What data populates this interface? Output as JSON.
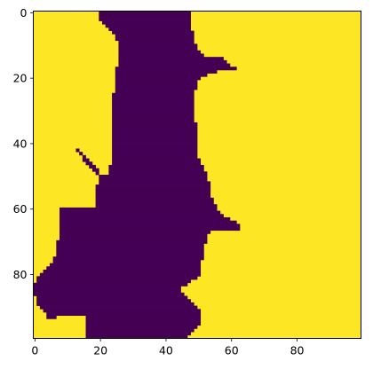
{
  "chart_data": {
    "type": "heatmap",
    "title": "",
    "xlabel": "",
    "ylabel": "",
    "grid": false,
    "x_ticks": [
      0,
      20,
      40,
      60,
      80
    ],
    "y_ticks": [
      0,
      20,
      40,
      60,
      80
    ],
    "xlim": [
      -0.5,
      99.5
    ],
    "ylim": [
      99.5,
      -0.5
    ],
    "colormap": "viridis",
    "colors": {
      "low": "#440154",
      "high": "#fde725"
    },
    "rows": 100,
    "cols": 100,
    "mask_value": 0,
    "background_value": 1,
    "mask_row_intervals": [
      {
        "y": 0,
        "segs": [
          [
            20,
            47
          ]
        ]
      },
      {
        "y": 1,
        "segs": [
          [
            20,
            47
          ]
        ]
      },
      {
        "y": 2,
        "segs": [
          [
            20,
            47
          ]
        ]
      },
      {
        "y": 3,
        "segs": [
          [
            21,
            47
          ]
        ]
      },
      {
        "y": 4,
        "segs": [
          [
            22,
            47
          ]
        ]
      },
      {
        "y": 5,
        "segs": [
          [
            23,
            47
          ]
        ]
      },
      {
        "y": 6,
        "segs": [
          [
            24,
            48
          ]
        ]
      },
      {
        "y": 7,
        "segs": [
          [
            25,
            48
          ]
        ]
      },
      {
        "y": 8,
        "segs": [
          [
            25,
            48
          ]
        ]
      },
      {
        "y": 9,
        "segs": [
          [
            26,
            48
          ]
        ]
      },
      {
        "y": 10,
        "segs": [
          [
            26,
            49
          ]
        ]
      },
      {
        "y": 11,
        "segs": [
          [
            26,
            49
          ]
        ]
      },
      {
        "y": 12,
        "segs": [
          [
            26,
            50
          ]
        ]
      },
      {
        "y": 13,
        "segs": [
          [
            26,
            51
          ]
        ]
      },
      {
        "y": 14,
        "segs": [
          [
            26,
            57
          ]
        ]
      },
      {
        "y": 15,
        "segs": [
          [
            26,
            58
          ]
        ]
      },
      {
        "y": 16,
        "segs": [
          [
            26,
            59
          ]
        ]
      },
      {
        "y": 17,
        "segs": [
          [
            25,
            61
          ]
        ]
      },
      {
        "y": 18,
        "segs": [
          [
            25,
            55
          ]
        ]
      },
      {
        "y": 19,
        "segs": [
          [
            25,
            52
          ]
        ]
      },
      {
        "y": 20,
        "segs": [
          [
            25,
            50
          ]
        ]
      },
      {
        "y": 21,
        "segs": [
          [
            25,
            49
          ]
        ]
      },
      {
        "y": 22,
        "segs": [
          [
            25,
            49
          ]
        ]
      },
      {
        "y": 23,
        "segs": [
          [
            25,
            49
          ]
        ]
      },
      {
        "y": 24,
        "segs": [
          [
            25,
            48
          ]
        ]
      },
      {
        "y": 25,
        "segs": [
          [
            24,
            48
          ]
        ]
      },
      {
        "y": 26,
        "segs": [
          [
            24,
            48
          ]
        ]
      },
      {
        "y": 27,
        "segs": [
          [
            24,
            48
          ]
        ]
      },
      {
        "y": 28,
        "segs": [
          [
            24,
            48
          ]
        ]
      },
      {
        "y": 29,
        "segs": [
          [
            24,
            48
          ]
        ]
      },
      {
        "y": 30,
        "segs": [
          [
            24,
            48
          ]
        ]
      },
      {
        "y": 31,
        "segs": [
          [
            24,
            48
          ]
        ]
      },
      {
        "y": 32,
        "segs": [
          [
            24,
            48
          ]
        ]
      },
      {
        "y": 33,
        "segs": [
          [
            24,
            48
          ]
        ]
      },
      {
        "y": 34,
        "segs": [
          [
            24,
            49
          ]
        ]
      },
      {
        "y": 35,
        "segs": [
          [
            24,
            49
          ]
        ]
      },
      {
        "y": 36,
        "segs": [
          [
            24,
            49
          ]
        ]
      },
      {
        "y": 37,
        "segs": [
          [
            24,
            49
          ]
        ]
      },
      {
        "y": 38,
        "segs": [
          [
            24,
            49
          ]
        ]
      },
      {
        "y": 39,
        "segs": [
          [
            24,
            49
          ]
        ]
      },
      {
        "y": 40,
        "segs": [
          [
            24,
            49
          ]
        ]
      },
      {
        "y": 41,
        "segs": [
          [
            24,
            49
          ]
        ]
      },
      {
        "y": 42,
        "segs": [
          [
            13,
            13
          ],
          [
            24,
            49
          ]
        ]
      },
      {
        "y": 43,
        "segs": [
          [
            14,
            14
          ],
          [
            24,
            49
          ]
        ]
      },
      {
        "y": 44,
        "segs": [
          [
            15,
            15
          ],
          [
            24,
            49
          ]
        ]
      },
      {
        "y": 45,
        "segs": [
          [
            15,
            16
          ],
          [
            24,
            50
          ]
        ]
      },
      {
        "y": 46,
        "segs": [
          [
            16,
            17
          ],
          [
            24,
            50
          ]
        ]
      },
      {
        "y": 47,
        "segs": [
          [
            17,
            18
          ],
          [
            23,
            51
          ]
        ]
      },
      {
        "y": 48,
        "segs": [
          [
            18,
            19
          ],
          [
            23,
            51
          ]
        ]
      },
      {
        "y": 49,
        "segs": [
          [
            19,
            19
          ],
          [
            23,
            52
          ]
        ]
      },
      {
        "y": 50,
        "segs": [
          [
            20,
            52
          ]
        ]
      },
      {
        "y": 51,
        "segs": [
          [
            20,
            52
          ]
        ]
      },
      {
        "y": 52,
        "segs": [
          [
            20,
            53
          ]
        ]
      },
      {
        "y": 53,
        "segs": [
          [
            19,
            53
          ]
        ]
      },
      {
        "y": 54,
        "segs": [
          [
            19,
            53
          ]
        ]
      },
      {
        "y": 55,
        "segs": [
          [
            19,
            53
          ]
        ]
      },
      {
        "y": 56,
        "segs": [
          [
            19,
            53
          ]
        ]
      },
      {
        "y": 57,
        "segs": [
          [
            19,
            54
          ]
        ]
      },
      {
        "y": 58,
        "segs": [
          [
            19,
            54
          ]
        ]
      },
      {
        "y": 59,
        "segs": [
          [
            19,
            55
          ]
        ]
      },
      {
        "y": 60,
        "segs": [
          [
            8,
            55
          ]
        ]
      },
      {
        "y": 61,
        "segs": [
          [
            8,
            56
          ]
        ]
      },
      {
        "y": 62,
        "segs": [
          [
            8,
            57
          ]
        ]
      },
      {
        "y": 63,
        "segs": [
          [
            8,
            59
          ]
        ]
      },
      {
        "y": 64,
        "segs": [
          [
            8,
            61
          ]
        ]
      },
      {
        "y": 65,
        "segs": [
          [
            8,
            62
          ]
        ]
      },
      {
        "y": 66,
        "segs": [
          [
            8,
            62
          ]
        ]
      },
      {
        "y": 67,
        "segs": [
          [
            8,
            53
          ]
        ]
      },
      {
        "y": 68,
        "segs": [
          [
            8,
            52
          ]
        ]
      },
      {
        "y": 69,
        "segs": [
          [
            8,
            52
          ]
        ]
      },
      {
        "y": 70,
        "segs": [
          [
            7,
            52
          ]
        ]
      },
      {
        "y": 71,
        "segs": [
          [
            7,
            51
          ]
        ]
      },
      {
        "y": 72,
        "segs": [
          [
            7,
            51
          ]
        ]
      },
      {
        "y": 73,
        "segs": [
          [
            7,
            51
          ]
        ]
      },
      {
        "y": 74,
        "segs": [
          [
            7,
            51
          ]
        ]
      },
      {
        "y": 75,
        "segs": [
          [
            6,
            51
          ]
        ]
      },
      {
        "y": 76,
        "segs": [
          [
            6,
            50
          ]
        ]
      },
      {
        "y": 77,
        "segs": [
          [
            5,
            50
          ]
        ]
      },
      {
        "y": 78,
        "segs": [
          [
            4,
            50
          ]
        ]
      },
      {
        "y": 79,
        "segs": [
          [
            3,
            50
          ]
        ]
      },
      {
        "y": 80,
        "segs": [
          [
            2,
            50
          ]
        ]
      },
      {
        "y": 81,
        "segs": [
          [
            1,
            49
          ]
        ]
      },
      {
        "y": 82,
        "segs": [
          [
            1,
            47
          ]
        ]
      },
      {
        "y": 83,
        "segs": [
          [
            0,
            46
          ]
        ]
      },
      {
        "y": 84,
        "segs": [
          [
            0,
            44
          ]
        ]
      },
      {
        "y": 85,
        "segs": [
          [
            0,
            44
          ]
        ]
      },
      {
        "y": 86,
        "segs": [
          [
            0,
            45
          ]
        ]
      },
      {
        "y": 87,
        "segs": [
          [
            1,
            46
          ]
        ]
      },
      {
        "y": 88,
        "segs": [
          [
            1,
            47
          ]
        ]
      },
      {
        "y": 89,
        "segs": [
          [
            1,
            48
          ]
        ]
      },
      {
        "y": 90,
        "segs": [
          [
            2,
            49
          ]
        ]
      },
      {
        "y": 91,
        "segs": [
          [
            3,
            50
          ]
        ]
      },
      {
        "y": 92,
        "segs": [
          [
            4,
            50
          ]
        ]
      },
      {
        "y": 93,
        "segs": [
          [
            4,
            6
          ],
          [
            16,
            50
          ]
        ]
      },
      {
        "y": 94,
        "segs": [
          [
            16,
            50
          ]
        ]
      },
      {
        "y": 95,
        "segs": [
          [
            16,
            50
          ]
        ]
      },
      {
        "y": 96,
        "segs": [
          [
            16,
            49
          ]
        ]
      },
      {
        "y": 97,
        "segs": [
          [
            16,
            48
          ]
        ]
      },
      {
        "y": 98,
        "segs": [
          [
            16,
            47
          ]
        ]
      },
      {
        "y": 99,
        "segs": [
          [
            16,
            46
          ]
        ]
      }
    ]
  }
}
